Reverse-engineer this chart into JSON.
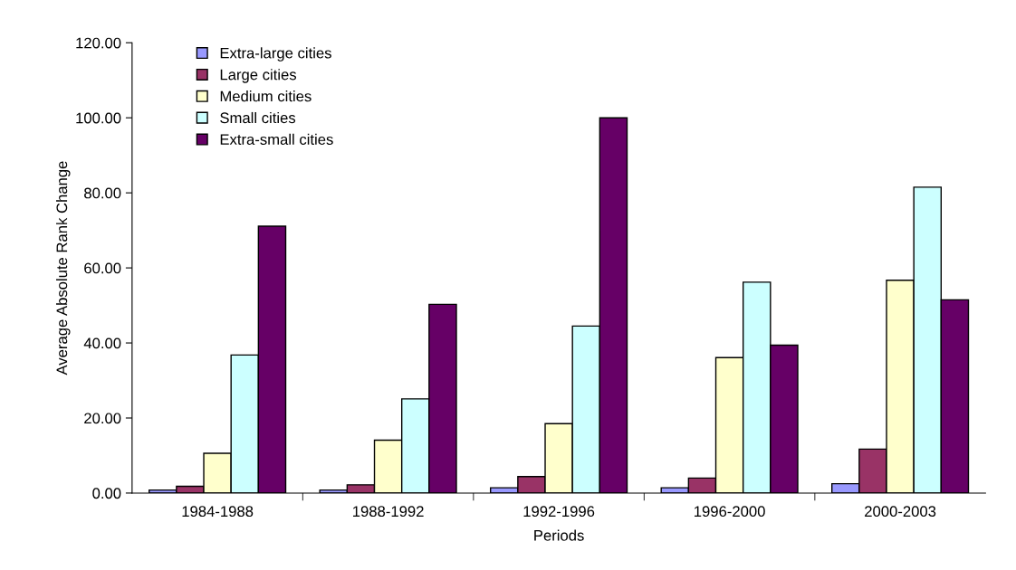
{
  "chart_data": {
    "type": "bar",
    "xlabel": "Periods",
    "ylabel": "Average Absolute Rank Change",
    "categories": [
      "1984-1988",
      "1988-1992",
      "1992-1996",
      "1996-2000",
      "2000-2003"
    ],
    "series": [
      {
        "name": "Extra-large cities",
        "color": "#9999ff",
        "values": [
          0.8,
          0.8,
          1.4,
          1.4,
          2.5
        ]
      },
      {
        "name": "Large cities",
        "color": "#993366",
        "values": [
          1.8,
          2.2,
          4.4,
          4.0,
          11.7
        ]
      },
      {
        "name": "Medium cities",
        "color": "#ffffcc",
        "values": [
          10.6,
          14.1,
          18.5,
          36.1,
          56.7
        ]
      },
      {
        "name": "Small cities",
        "color": "#ccffff",
        "values": [
          36.8,
          25.1,
          44.5,
          56.2,
          81.5
        ]
      },
      {
        "name": "Extra-small cities",
        "color": "#660066",
        "values": [
          71.1,
          50.3,
          100.0,
          39.4,
          51.5
        ]
      }
    ],
    "ylim": [
      0,
      120
    ],
    "yticks": [
      {
        "value": 0,
        "label": "0.00"
      },
      {
        "value": 20,
        "label": "20.00"
      },
      {
        "value": 40,
        "label": "40.00"
      },
      {
        "value": 60,
        "label": "60.00"
      },
      {
        "value": 80,
        "label": "80.00"
      },
      {
        "value": 100,
        "label": "100.00"
      },
      {
        "value": 120,
        "label": "120.00"
      }
    ],
    "grid": false,
    "legend": "top left"
  }
}
